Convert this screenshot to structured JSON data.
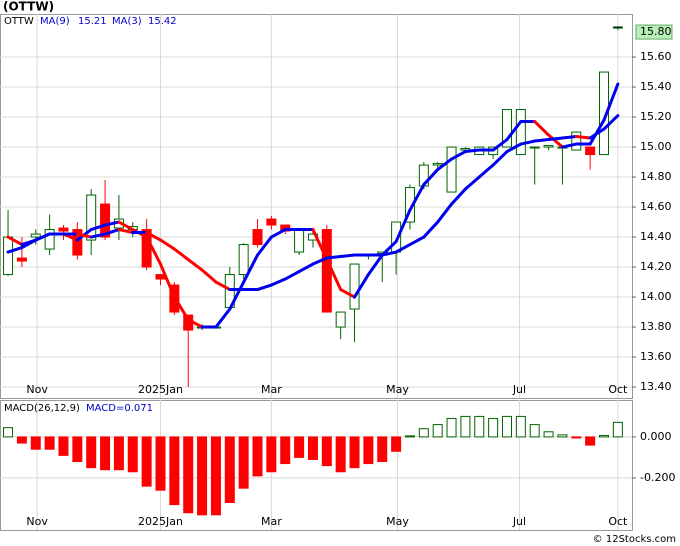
{
  "header": "(OTTW)",
  "watermark": "© 12Stocks.com",
  "chart_data": [
    {
      "type": "candlestick",
      "legend": [
        "OTTW",
        "MA(9)",
        "15.21",
        "MA(3)",
        "15.42"
      ],
      "x": [
        0,
        1,
        2,
        3,
        4,
        5,
        6,
        7,
        8,
        9,
        10,
        11,
        12,
        13,
        14,
        15,
        16,
        17,
        18,
        19,
        20,
        21,
        22,
        23,
        24,
        25,
        26,
        27,
        28,
        29,
        30,
        31,
        32,
        33,
        34,
        35,
        36,
        37,
        38,
        39,
        40,
        41,
        42,
        43,
        44
      ],
      "open": [
        14.15,
        14.26,
        14.4,
        14.32,
        14.46,
        14.45,
        14.38,
        14.62,
        14.46,
        14.45,
        14.45,
        14.15,
        14.08,
        13.88,
        13.8,
        13.8,
        13.93,
        14.15,
        14.45,
        14.52,
        14.48,
        14.3,
        14.38,
        14.45,
        13.8,
        13.92,
        14.28,
        14.29,
        14.3,
        14.5,
        14.74,
        14.88,
        14.7,
        14.98,
        14.95,
        14.95,
        15.0,
        14.95,
        15.0,
        15.0,
        15.0,
        14.98,
        15.0,
        14.95,
        15.8
      ],
      "high": [
        14.58,
        14.4,
        14.45,
        14.55,
        14.48,
        14.5,
        14.72,
        14.78,
        14.68,
        14.5,
        14.52,
        14.15,
        14.1,
        13.88,
        13.82,
        13.81,
        14.2,
        14.36,
        14.52,
        14.54,
        14.48,
        14.46,
        14.45,
        14.48,
        13.9,
        14.22,
        14.28,
        14.3,
        14.5,
        14.75,
        14.9,
        14.9,
        15.0,
        15.0,
        15.0,
        15.0,
        15.25,
        15.25,
        15.0,
        15.0,
        15.0,
        15.1,
        15.0,
        15.5,
        15.8
      ],
      "low": [
        14.14,
        14.2,
        14.35,
        14.28,
        14.38,
        14.25,
        14.28,
        14.38,
        14.38,
        14.4,
        14.18,
        14.08,
        13.88,
        13.4,
        13.78,
        13.79,
        13.92,
        14.12,
        14.33,
        14.45,
        14.42,
        14.28,
        14.33,
        13.9,
        13.72,
        13.7,
        14.25,
        14.1,
        14.15,
        14.45,
        14.72,
        14.85,
        14.7,
        14.96,
        14.95,
        14.92,
        15.0,
        14.95,
        14.75,
        14.98,
        14.75,
        14.98,
        14.85,
        14.95,
        15.78
      ],
      "close": [
        14.4,
        14.24,
        14.42,
        14.45,
        14.44,
        14.28,
        14.68,
        14.4,
        14.52,
        14.47,
        14.2,
        14.12,
        13.9,
        13.78,
        13.8,
        13.8,
        14.15,
        14.35,
        14.35,
        14.48,
        14.44,
        14.45,
        14.42,
        13.9,
        13.9,
        14.22,
        14.28,
        14.3,
        14.5,
        14.73,
        14.88,
        14.89,
        15.0,
        14.99,
        15.0,
        15.0,
        15.25,
        15.25,
        15.0,
        15.01,
        15.0,
        15.1,
        14.95,
        15.5,
        15.8
      ],
      "up_color": "#006400",
      "down_color": "#ff0000",
      "series": [
        {
          "name": "MA(3)",
          "color": "#0000ee",
          "down_color": "#ff0000",
          "values": [
            14.4,
            14.35,
            14.38,
            14.42,
            14.42,
            14.38,
            14.45,
            14.48,
            14.5,
            14.45,
            14.4,
            14.22,
            14.0,
            13.85,
            13.8,
            13.8,
            13.92,
            14.1,
            14.28,
            14.4,
            14.45,
            14.45,
            14.45,
            14.25,
            14.05,
            14.0,
            14.15,
            14.28,
            14.37,
            14.58,
            14.75,
            14.85,
            14.92,
            14.97,
            14.98,
            14.98,
            15.05,
            15.17,
            15.17,
            15.08,
            15.0,
            15.02,
            15.02,
            15.18,
            15.42
          ]
        },
        {
          "name": "MA(9)",
          "color": "#0000ee",
          "down_color": "#ff0000",
          "values": [
            14.3,
            14.33,
            14.38,
            14.42,
            14.42,
            14.42,
            14.4,
            14.42,
            14.45,
            14.43,
            14.43,
            14.38,
            14.32,
            14.25,
            14.18,
            14.1,
            14.05,
            14.05,
            14.05,
            14.08,
            14.12,
            14.17,
            14.22,
            14.26,
            14.27,
            14.28,
            14.28,
            14.28,
            14.3,
            14.35,
            14.4,
            14.5,
            14.62,
            14.72,
            14.8,
            14.88,
            14.97,
            15.02,
            15.04,
            15.05,
            15.06,
            15.07,
            15.06,
            15.12,
            15.21
          ]
        }
      ],
      "last_price": {
        "value": 15.8,
        "label": "15.80"
      },
      "xlim": [
        -0.58,
        45.02
      ],
      "xticks": [
        {
          "value": 2.1,
          "label": "Nov"
        },
        {
          "value": 11,
          "label": "2025Jan"
        },
        {
          "value": 19,
          "label": "Mar"
        },
        {
          "value": 28.1,
          "label": "May"
        },
        {
          "value": 36.9,
          "label": "Jul"
        },
        {
          "value": 44,
          "label": "Oct"
        }
      ],
      "ylim": [
        13.327,
        15.887
      ],
      "yticks": [
        {
          "value": 13.4,
          "label": "13.40"
        },
        {
          "value": 13.6,
          "label": "13.60"
        },
        {
          "value": 13.8,
          "label": "13.80"
        },
        {
          "value": 14.0,
          "label": "14.00"
        },
        {
          "value": 14.2,
          "label": "14.20"
        },
        {
          "value": 14.4,
          "label": "14.40"
        },
        {
          "value": 14.6,
          "label": "14.60"
        },
        {
          "value": 14.8,
          "label": "14.80"
        },
        {
          "value": 15.0,
          "label": "15.00"
        },
        {
          "value": 15.2,
          "label": "15.20"
        },
        {
          "value": 15.4,
          "label": "15.40"
        },
        {
          "value": 15.6,
          "label": "15.60"
        }
      ],
      "grid": true
    },
    {
      "type": "bar",
      "legend": [
        "MACD(26,12,9)",
        "MACD=0.071"
      ],
      "x": [
        0,
        1,
        2,
        3,
        4,
        5,
        6,
        7,
        8,
        9,
        10,
        11,
        12,
        13,
        14,
        15,
        16,
        17,
        18,
        19,
        20,
        21,
        22,
        23,
        24,
        25,
        26,
        27,
        28,
        29,
        30,
        31,
        32,
        33,
        34,
        35,
        36,
        37,
        38,
        39,
        40,
        41,
        42,
        43,
        44
      ],
      "values": [
        0.045,
        -0.03,
        -0.06,
        -0.06,
        -0.09,
        -0.12,
        -0.15,
        -0.16,
        -0.16,
        -0.17,
        -0.24,
        -0.26,
        -0.33,
        -0.37,
        -0.38,
        -0.38,
        -0.32,
        -0.25,
        -0.19,
        -0.17,
        -0.13,
        -0.1,
        -0.11,
        -0.14,
        -0.17,
        -0.15,
        -0.13,
        -0.12,
        -0.07,
        0.005,
        0.04,
        0.06,
        0.09,
        0.1,
        0.1,
        0.09,
        0.1,
        0.1,
        0.06,
        0.025,
        0.01,
        -0.005,
        -0.04,
        0.007,
        0.071
      ],
      "up_color": "#006400",
      "down_color": "#ff0000",
      "xlim": [
        -0.58,
        45.02
      ],
      "xticks": [
        {
          "value": 2.1,
          "label": "Nov"
        },
        {
          "value": 11,
          "label": "2025Jan"
        },
        {
          "value": 19,
          "label": "Mar"
        },
        {
          "value": 28.1,
          "label": "May"
        },
        {
          "value": 36.9,
          "label": "Jul"
        },
        {
          "value": 44,
          "label": "Oct"
        }
      ],
      "ylim": [
        -0.454,
        0.18
      ],
      "yticks": [
        {
          "value": 0,
          "label": "0.000"
        },
        {
          "value": -0.2,
          "label": "-0.200"
        }
      ],
      "grid": true
    }
  ]
}
